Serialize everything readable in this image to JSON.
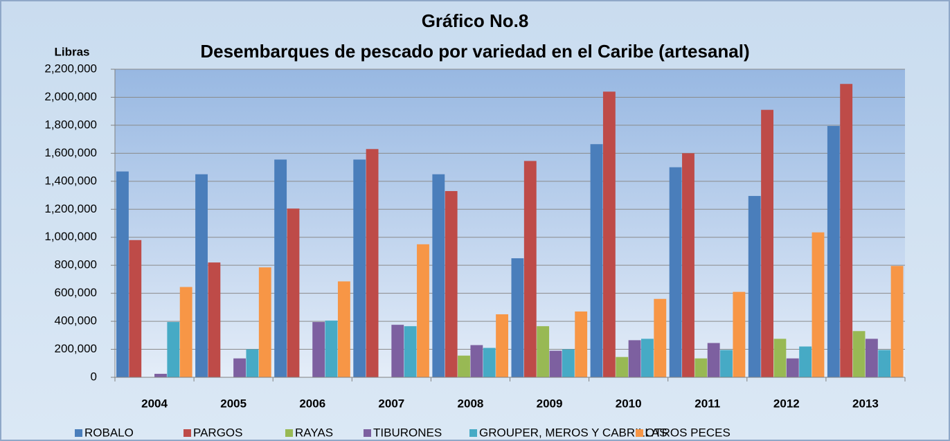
{
  "chart_data": {
    "type": "bar",
    "title": "Gráfico No.8",
    "subtitle": "Desembarques de pescado por variedad en el Caribe (artesanal)",
    "y_label": "Libras",
    "categories": [
      "2004",
      "2005",
      "2006",
      "2007",
      "2008",
      "2009",
      "2010",
      "2011",
      "2012",
      "2013"
    ],
    "series": [
      {
        "name": "ROBALO",
        "color": "#4a7ebb",
        "values": [
          1470000,
          1450000,
          1555000,
          1555000,
          1450000,
          850000,
          1665000,
          1500000,
          1295000,
          1795000
        ]
      },
      {
        "name": "PARGOS",
        "color": "#be4b48",
        "values": [
          980000,
          820000,
          1205000,
          1630000,
          1330000,
          1545000,
          2040000,
          1600000,
          1910000,
          2095000
        ]
      },
      {
        "name": "RAYAS",
        "color": "#98b954",
        "values": [
          0,
          0,
          0,
          0,
          155000,
          365000,
          145000,
          135000,
          275000,
          330000
        ]
      },
      {
        "name": "TIBURONES",
        "color": "#7d60a0",
        "values": [
          25000,
          135000,
          395000,
          375000,
          230000,
          190000,
          265000,
          245000,
          135000,
          275000
        ]
      },
      {
        "name": "GROUPER, MEROS Y CABRILLAS",
        "color": "#46aac5",
        "values": [
          395000,
          200000,
          405000,
          365000,
          210000,
          200000,
          275000,
          195000,
          220000,
          195000
        ]
      },
      {
        "name": "OTROS PECES",
        "color": "#f79646",
        "values": [
          645000,
          785000,
          685000,
          950000,
          450000,
          470000,
          560000,
          610000,
          1035000,
          795000
        ]
      }
    ],
    "ylim": [
      0,
      2200000
    ],
    "yticks": [
      0,
      {
        "value": 200000,
        "label": "200,000"
      },
      {
        "value": 400000,
        "label": "400,000"
      },
      {
        "value": 600000,
        "label": "600,000"
      },
      {
        "value": 800000,
        "label": "800,000"
      },
      {
        "value": 1000000,
        "label": "1,000,000"
      },
      {
        "value": 1200000,
        "label": "1,200,000"
      },
      {
        "value": 1400000,
        "label": "1,400,000"
      },
      {
        "value": 1600000,
        "label": "1,600,000"
      },
      {
        "value": 1800000,
        "label": "1,800,000"
      },
      {
        "value": 2000000,
        "label": "2,000,000"
      },
      {
        "value": 2200000,
        "label": "2,200,000"
      }
    ],
    "grid": true
  }
}
